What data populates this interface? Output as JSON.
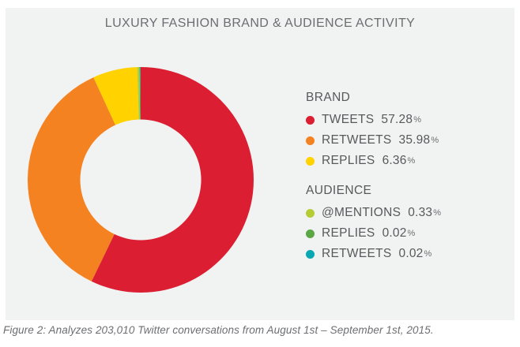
{
  "title": "LUXURY FASHION BRAND & AUDIENCE ACTIVITY",
  "caption": "Figure 2: Analyzes 203,010 Twitter conversations from August 1st – September 1st, 2015.",
  "strings": {
    "percent_sign": "%"
  },
  "colors": {
    "page_bg": "#FFFFFF",
    "panel_bg": "#F1F2F2",
    "title_text": "#6D6E71",
    "legend_text": "#58595B",
    "caption_text": "#6D6E71"
  },
  "legend": {
    "groups": [
      {
        "heading": "BRAND"
      },
      {
        "heading": "AUDIENCE"
      }
    ]
  },
  "chart_data": {
    "type": "pie",
    "subtype": "donut",
    "title": "LUXURY FASHION BRAND & AUDIENCE ACTIVITY",
    "start_angle_deg": 0,
    "direction": "clockwise",
    "inner_radius_ratio": 0.535,
    "legend_position": "right",
    "series": [
      {
        "group": "BRAND",
        "label": "TWEETS",
        "value": 57.28,
        "display": "57.28",
        "color": "#DC1E32"
      },
      {
        "group": "BRAND",
        "label": "RETWEETS",
        "value": 35.98,
        "display": "35.98",
        "color": "#F58221"
      },
      {
        "group": "BRAND",
        "label": "REPLIES",
        "value": 6.36,
        "display": "6.36",
        "color": "#FFD200"
      },
      {
        "group": "AUDIENCE",
        "label": "@MENTIONS",
        "value": 0.33,
        "display": "0.33",
        "color": "#B5CC34"
      },
      {
        "group": "AUDIENCE",
        "label": "REPLIES",
        "value": 0.02,
        "display": "0.02",
        "color": "#5AA744"
      },
      {
        "group": "AUDIENCE",
        "label": "RETWEETS",
        "value": 0.02,
        "display": "0.02",
        "color": "#09A7B3"
      }
    ]
  }
}
